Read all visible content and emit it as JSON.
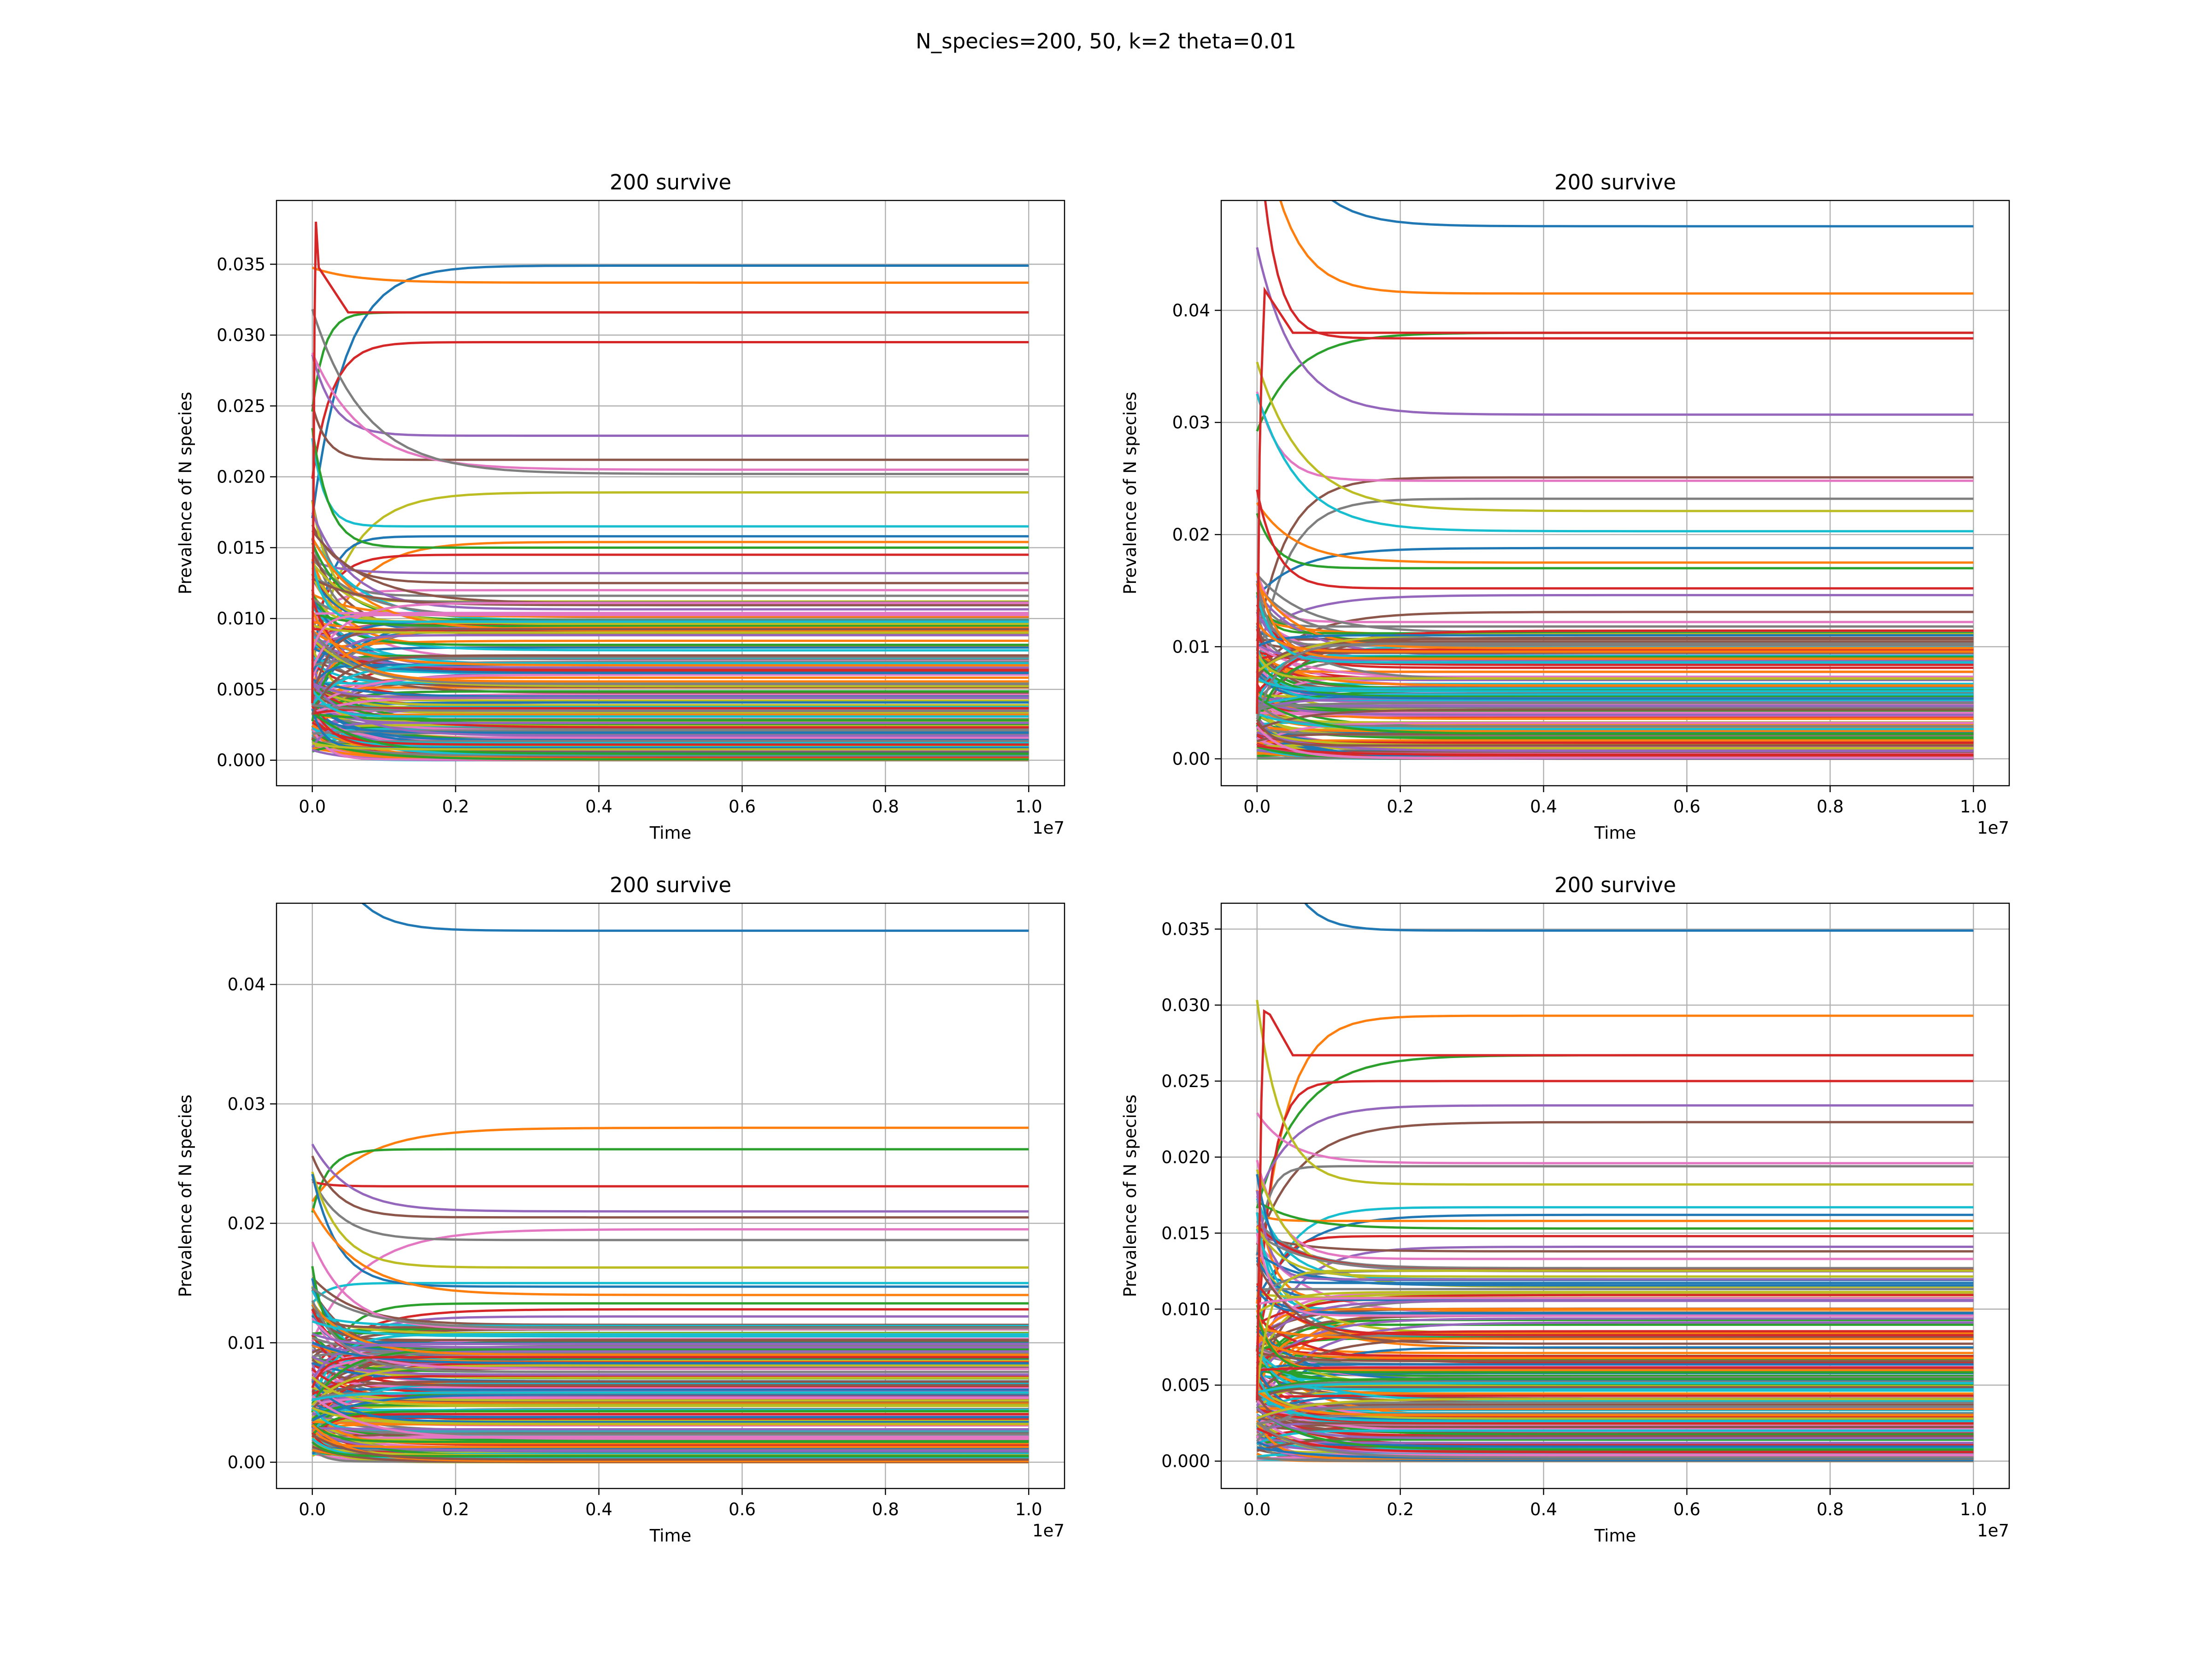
{
  "figure": {
    "suptitle": "N_species=200, 50, k=2 theta=0.01"
  },
  "chart_data": [
    {
      "type": "line",
      "title": "200 survive",
      "xlabel": "Time",
      "ylabel": "Prevalence of N species",
      "x_offset_label": "1e7",
      "xlim": [
        -0.05,
        1.05
      ],
      "ylim": [
        -0.0018,
        0.0395
      ],
      "xticks": [
        0.0,
        0.2,
        0.4,
        0.6,
        0.8,
        1.0
      ],
      "xtick_labels": [
        "0.0",
        "0.2",
        "0.4",
        "0.6",
        "0.8",
        "1.0"
      ],
      "yticks": [
        0.0,
        0.005,
        0.01,
        0.015,
        0.02,
        0.025,
        0.03,
        0.035
      ],
      "ytick_labels": [
        "0.000",
        "0.005",
        "0.010",
        "0.015",
        "0.020",
        "0.025",
        "0.030",
        "0.035"
      ],
      "grid": true,
      "series_count": 200,
      "notable_final_values": [
        0.0349,
        0.0337,
        0.0316,
        0.0295,
        0.0229,
        0.0212,
        0.0205,
        0.0202,
        0.0189,
        0.0165,
        0.0158,
        0.0154,
        0.015,
        0.0145,
        0.0132,
        0.0125,
        0.012,
        0.0116,
        0.0112
      ],
      "peak": {
        "x": 0.005,
        "y": 0.038
      }
    },
    {
      "type": "line",
      "title": "200 survive",
      "xlabel": "Time",
      "ylabel": "Prevalence of N species",
      "x_offset_label": "1e7",
      "xlim": [
        -0.05,
        1.05
      ],
      "ylim": [
        -0.0024,
        0.0498
      ],
      "xticks": [
        0.0,
        0.2,
        0.4,
        0.6,
        0.8,
        1.0
      ],
      "xtick_labels": [
        "0.0",
        "0.2",
        "0.4",
        "0.6",
        "0.8",
        "1.0"
      ],
      "yticks": [
        0.0,
        0.01,
        0.02,
        0.03,
        0.04
      ],
      "ytick_labels": [
        "0.00",
        "0.01",
        "0.02",
        "0.03",
        "0.04"
      ],
      "grid": true,
      "series_count": 200,
      "notable_final_values": [
        0.0475,
        0.0415,
        0.038,
        0.0375,
        0.0307,
        0.0251,
        0.0248,
        0.0232,
        0.0221,
        0.0203,
        0.0188,
        0.0175,
        0.017,
        0.0152,
        0.0146,
        0.0131,
        0.0122,
        0.0118
      ],
      "peak": {
        "x": 0.006,
        "y": 0.0338
      }
    },
    {
      "type": "line",
      "title": "200 survive",
      "xlabel": "Time",
      "ylabel": "Prevalence of N species",
      "x_offset_label": "1e7",
      "xlim": [
        -0.05,
        1.05
      ],
      "ylim": [
        -0.0022,
        0.0468
      ],
      "xticks": [
        0.0,
        0.2,
        0.4,
        0.6,
        0.8,
        1.0
      ],
      "xtick_labels": [
        "0.0",
        "0.2",
        "0.4",
        "0.6",
        "0.8",
        "1.0"
      ],
      "yticks": [
        0.0,
        0.01,
        0.02,
        0.03,
        0.04
      ],
      "ytick_labels": [
        "0.00",
        "0.01",
        "0.02",
        "0.03",
        "0.04"
      ],
      "grid": true,
      "series_count": 200,
      "notable_final_values": [
        0.0445,
        0.028,
        0.0262,
        0.0231,
        0.021,
        0.0205,
        0.0195,
        0.0186,
        0.0163,
        0.015,
        0.0147,
        0.014,
        0.0133,
        0.0128,
        0.0122,
        0.0115
      ],
      "peak": null
    },
    {
      "type": "line",
      "title": "200 survive",
      "xlabel": "Time",
      "ylabel": "Prevalence of N species",
      "x_offset_label": "1e7",
      "xlim": [
        -0.05,
        1.05
      ],
      "ylim": [
        -0.0018,
        0.0367
      ],
      "xticks": [
        0.0,
        0.2,
        0.4,
        0.6,
        0.8,
        1.0
      ],
      "xtick_labels": [
        "0.0",
        "0.2",
        "0.4",
        "0.6",
        "0.8",
        "1.0"
      ],
      "yticks": [
        0.0,
        0.005,
        0.01,
        0.015,
        0.02,
        0.025,
        0.03,
        0.035
      ],
      "ytick_labels": [
        "0.000",
        "0.005",
        "0.010",
        "0.015",
        "0.020",
        "0.025",
        "0.030",
        "0.035"
      ],
      "grid": true,
      "series_count": 200,
      "notable_final_values": [
        0.0349,
        0.0293,
        0.0267,
        0.025,
        0.0234,
        0.0223,
        0.0196,
        0.0194,
        0.0182,
        0.0167,
        0.0162,
        0.0158,
        0.0153,
        0.0148,
        0.0141,
        0.0138,
        0.0133,
        0.0127
      ],
      "peak": {
        "x": 0.01,
        "y": 0.0296
      }
    }
  ],
  "palette": [
    "#1f77b4",
    "#ff7f0e",
    "#2ca02c",
    "#d62728",
    "#9467bd",
    "#8c564b",
    "#e377c2",
    "#7f7f7f",
    "#bcbd22",
    "#17becf"
  ]
}
